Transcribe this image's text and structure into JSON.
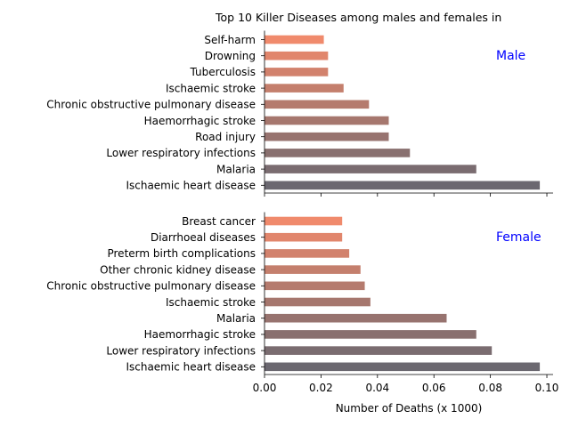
{
  "chart_data": {
    "type": "bar",
    "orientation": "horizontal",
    "title": "Top 10 Killer Diseases among males and females in",
    "xlabel": "Number of Deaths (x 1000)",
    "xlim": [
      0,
      0.1
    ],
    "xticks": [
      "0.00",
      "0.02",
      "0.04",
      "0.06",
      "0.08",
      "0.10"
    ],
    "grid": false,
    "label_color": "#0000ff",
    "bar_color_top": "#f08a6c",
    "bar_color_bottom": "#6b6870",
    "panels": [
      {
        "label": "Male",
        "categories": [
          "Self-harm",
          "Drowning",
          "Tuberculosis",
          "Ischaemic stroke",
          "Chronic obstructive pulmonary disease",
          "Haemorrhagic stroke",
          "Road injury",
          "Lower respiratory infections",
          "Malaria",
          "Ischaemic heart disease"
        ],
        "values": [
          0.021,
          0.0225,
          0.0225,
          0.028,
          0.037,
          0.044,
          0.044,
          0.0515,
          0.075,
          0.0975
        ]
      },
      {
        "label": "Female",
        "categories": [
          "Breast cancer",
          "Diarrhoeal diseases",
          "Preterm birth complications",
          "Other chronic kidney disease",
          "Chronic obstructive pulmonary disease",
          "Ischaemic stroke",
          "Malaria",
          "Haemorrhagic stroke",
          "Lower respiratory infections",
          "Ischaemic heart disease"
        ],
        "values": [
          0.0275,
          0.0275,
          0.03,
          0.034,
          0.0355,
          0.0375,
          0.0645,
          0.075,
          0.0805,
          0.0975
        ]
      }
    ]
  }
}
